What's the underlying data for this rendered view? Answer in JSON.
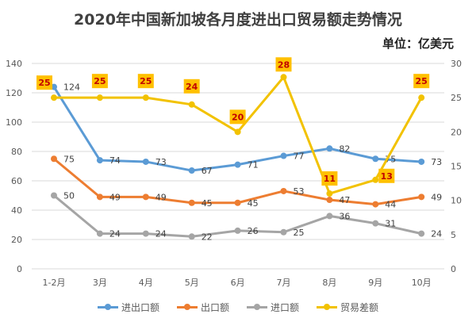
{
  "chart_data": {
    "type": "line",
    "title": "2020年中国新加坡各月度进出口贸易额走势情况",
    "unit_label": "单位：亿美元",
    "categories": [
      "1-2月",
      "3月",
      "4月",
      "5月",
      "6月",
      "7月",
      "8月",
      "9月",
      "10月"
    ],
    "y_left": {
      "range": [
        0,
        140
      ],
      "ticks": [
        "0",
        "20",
        "40",
        "60",
        "80",
        "100",
        "120",
        "140"
      ]
    },
    "y_right": {
      "range": [
        0,
        30
      ],
      "ticks": [
        "0",
        "5",
        "10",
        "15",
        "20",
        "25",
        "30"
      ]
    },
    "grid": true,
    "legend_position": "bottom",
    "series": [
      {
        "name": "进出口额",
        "axis": "left",
        "color": "#5B9BD5",
        "values": [
          124,
          74,
          73,
          67,
          71,
          77,
          82,
          75,
          73
        ]
      },
      {
        "name": "出口额",
        "axis": "left",
        "color": "#ED7D31",
        "values": [
          75,
          49,
          49,
          45,
          45,
          53,
          47,
          44,
          49
        ]
      },
      {
        "name": "进口额",
        "axis": "left",
        "color": "#A5A5A5",
        "values": [
          50,
          24,
          24,
          22,
          26,
          25,
          36,
          31,
          24
        ]
      },
      {
        "name": "贸易差额",
        "axis": "right",
        "color": "#F2C200",
        "values": [
          25,
          25,
          25,
          24,
          20,
          28,
          11,
          13,
          25
        ]
      }
    ]
  }
}
